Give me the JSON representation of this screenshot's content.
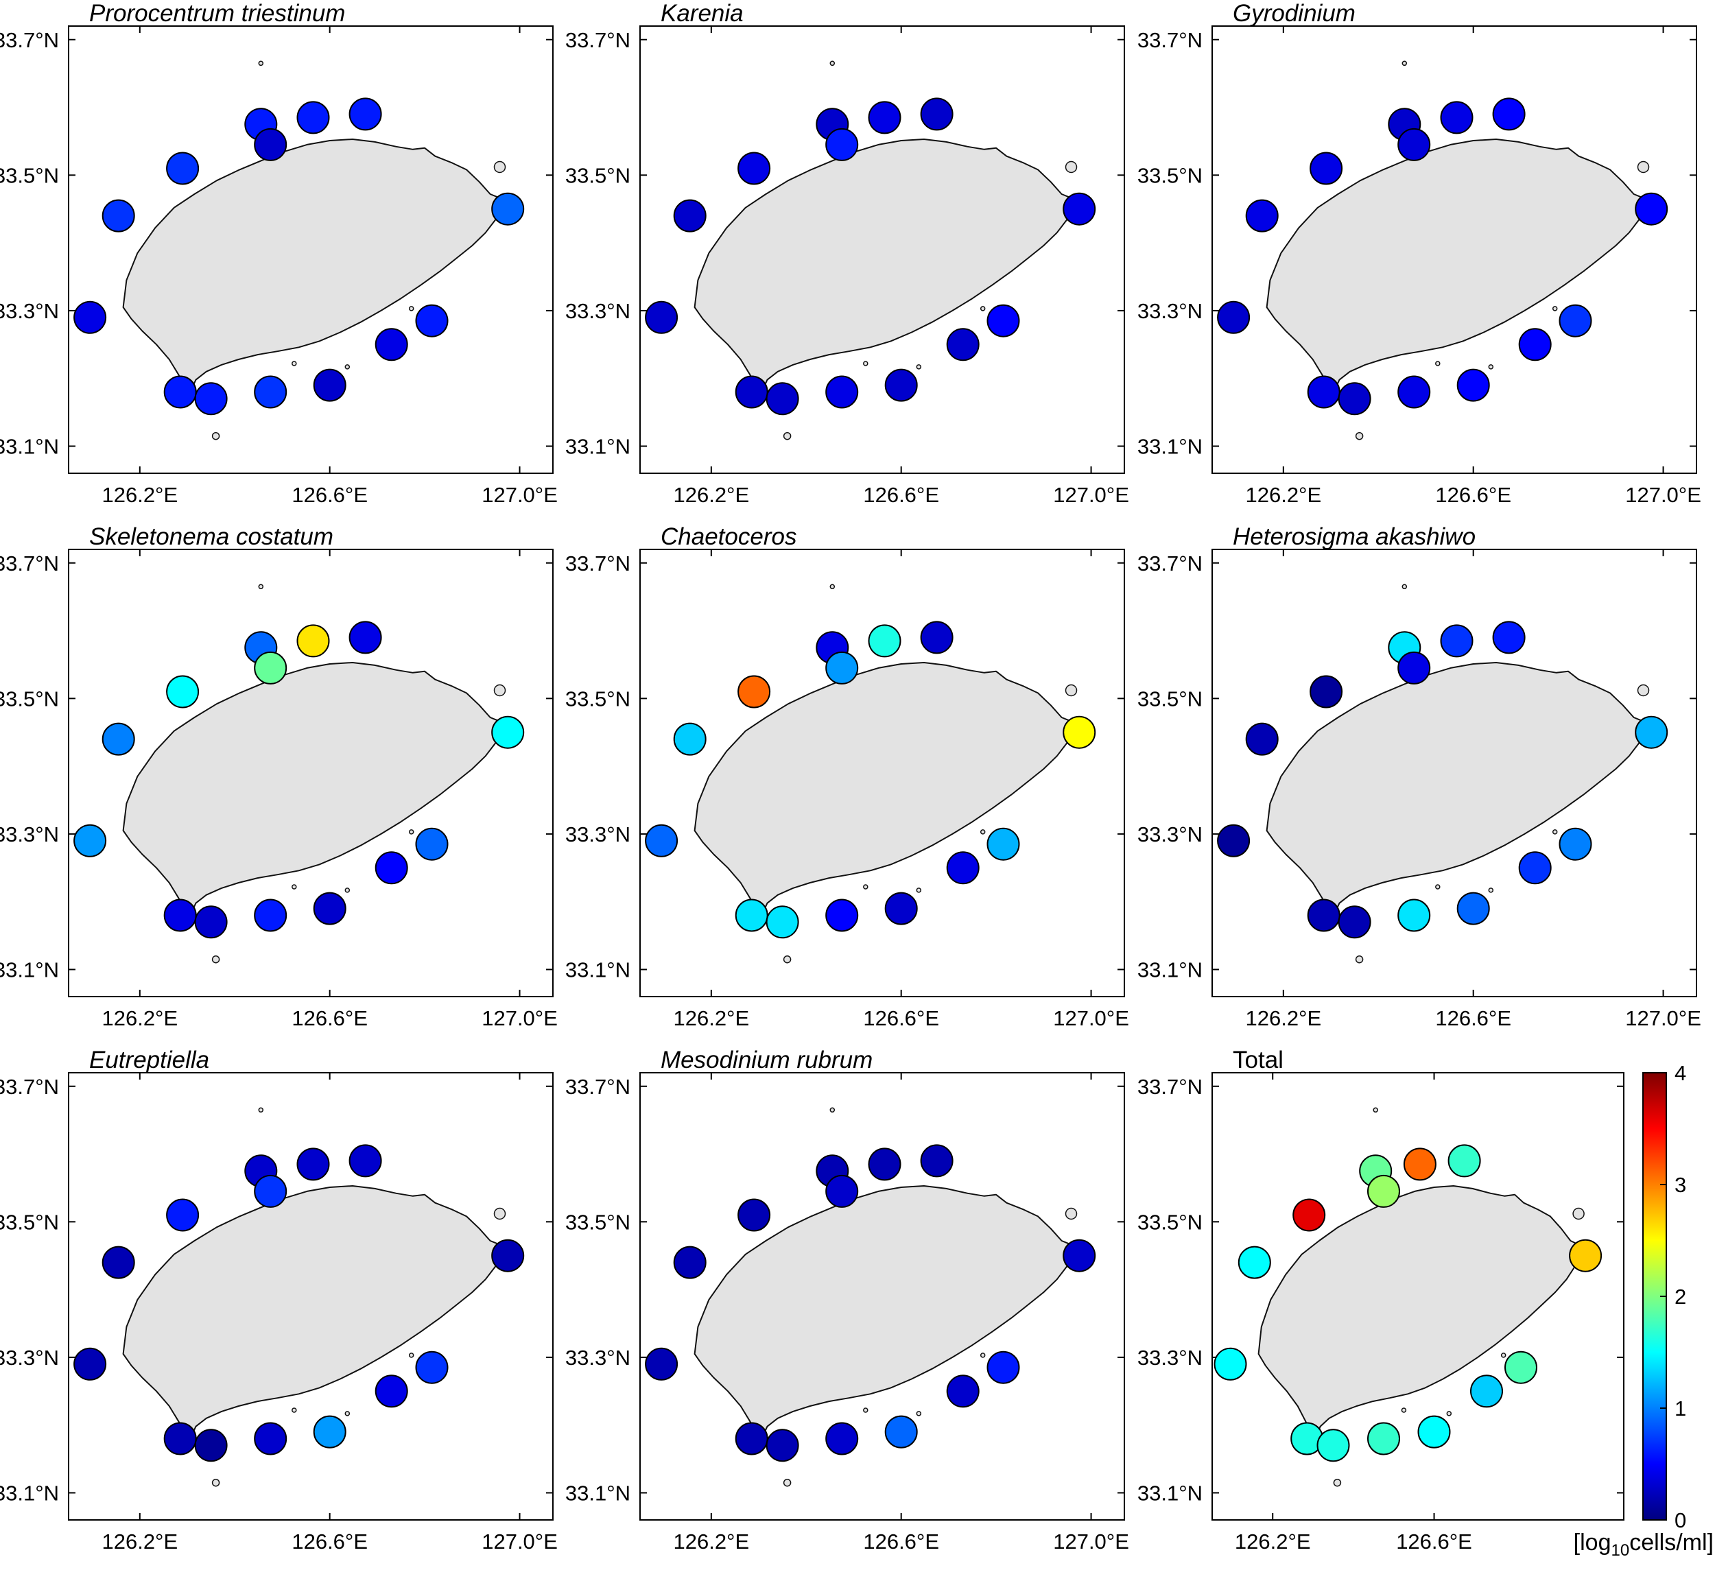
{
  "chart_data": {
    "type": "scatter",
    "subtype": "station-map-grid",
    "description": "Spatial distribution of phytoplankton abundance at coastal stations around Jeju Island",
    "colormap": "jet",
    "value_range": [
      0,
      4
    ],
    "lon_range": [
      126.05,
      127.07
    ],
    "lat_range": [
      33.06,
      33.72
    ],
    "x_ticks": [
      {
        "v": 126.2,
        "label": "126.2°E"
      },
      {
        "v": 126.6,
        "label": "126.6°E"
      },
      {
        "v": 127.0,
        "label": "127.0°E"
      }
    ],
    "y_ticks": [
      {
        "v": 33.7,
        "label": "33.7°N"
      },
      {
        "v": 33.5,
        "label": "33.5°N"
      },
      {
        "v": 33.3,
        "label": "33.3°N"
      },
      {
        "v": 33.1,
        "label": "33.1°N"
      }
    ],
    "colorbar_ticks": [
      0,
      1,
      2,
      3,
      4
    ],
    "units_label": {
      "prefix": "[log",
      "sub": "10",
      "suffix": "cells/ml]"
    },
    "stations": [
      [
        126.29,
        33.51
      ],
      [
        126.455,
        33.575
      ],
      [
        126.475,
        33.545
      ],
      [
        126.565,
        33.585
      ],
      [
        126.675,
        33.59
      ],
      [
        126.155,
        33.44
      ],
      [
        126.975,
        33.45
      ],
      [
        126.095,
        33.29
      ],
      [
        126.285,
        33.18
      ],
      [
        126.35,
        33.17
      ],
      [
        126.475,
        33.18
      ],
      [
        126.6,
        33.19
      ],
      [
        126.73,
        33.25
      ],
      [
        126.815,
        33.285
      ]
    ],
    "island_outline": [
      [
        126.165,
        33.305
      ],
      [
        126.172,
        33.345
      ],
      [
        126.195,
        33.385
      ],
      [
        126.232,
        33.422
      ],
      [
        126.272,
        33.452
      ],
      [
        126.315,
        33.472
      ],
      [
        126.362,
        33.492
      ],
      [
        126.41,
        33.508
      ],
      [
        126.458,
        33.522
      ],
      [
        126.505,
        33.535
      ],
      [
        126.552,
        33.545
      ],
      [
        126.6,
        33.551
      ],
      [
        126.648,
        33.553
      ],
      [
        126.695,
        33.549
      ],
      [
        126.74,
        33.542
      ],
      [
        126.775,
        33.538
      ],
      [
        126.8,
        33.54
      ],
      [
        126.822,
        33.528
      ],
      [
        126.858,
        33.518
      ],
      [
        126.888,
        33.508
      ],
      [
        126.915,
        33.49
      ],
      [
        126.938,
        33.472
      ],
      [
        126.952,
        33.468
      ],
      [
        126.958,
        33.455
      ],
      [
        126.95,
        33.435
      ],
      [
        126.928,
        33.415
      ],
      [
        126.9,
        33.396
      ],
      [
        126.868,
        33.378
      ],
      [
        126.832,
        33.358
      ],
      [
        126.792,
        33.338
      ],
      [
        126.75,
        33.318
      ],
      [
        126.708,
        33.3
      ],
      [
        126.665,
        33.283
      ],
      [
        126.622,
        33.268
      ],
      [
        126.578,
        33.255
      ],
      [
        126.535,
        33.246
      ],
      [
        126.49,
        33.24
      ],
      [
        126.448,
        33.235
      ],
      [
        126.408,
        33.228
      ],
      [
        126.372,
        33.22
      ],
      [
        126.34,
        33.21
      ],
      [
        126.318,
        33.198
      ],
      [
        126.308,
        33.183
      ],
      [
        126.3,
        33.172
      ],
      [
        126.293,
        33.186
      ],
      [
        126.282,
        33.205
      ],
      [
        126.262,
        33.228
      ],
      [
        126.235,
        33.25
      ],
      [
        126.205,
        33.27
      ],
      [
        126.182,
        33.288
      ]
    ],
    "islets": [
      {
        "lon": 126.455,
        "lat": 33.665,
        "r": 3
      },
      {
        "lon": 126.958,
        "lat": 33.512,
        "r": 8
      },
      {
        "lon": 126.36,
        "lat": 33.115,
        "r": 5
      },
      {
        "lon": 126.525,
        "lat": 33.222,
        "r": 3
      },
      {
        "lon": 126.637,
        "lat": 33.217,
        "r": 3
      },
      {
        "lon": 126.772,
        "lat": 33.303,
        "r": 3
      }
    ],
    "panels": [
      {
        "title": "Prorocentrum triestinum",
        "italic": true,
        "colorbar": false,
        "values": [
          0.7,
          0.6,
          0.3,
          0.6,
          0.6,
          0.7,
          0.9,
          0.4,
          0.6,
          0.6,
          0.7,
          0.3,
          0.4,
          0.6
        ]
      },
      {
        "title": "Karenia",
        "italic": true,
        "colorbar": false,
        "values": [
          0.4,
          0.3,
          0.6,
          0.4,
          0.3,
          0.3,
          0.4,
          0.3,
          0.3,
          0.3,
          0.4,
          0.3,
          0.3,
          0.5
        ]
      },
      {
        "title": "Gyrodinium",
        "italic": true,
        "colorbar": false,
        "values": [
          0.4,
          0.3,
          0.35,
          0.4,
          0.5,
          0.4,
          0.5,
          0.3,
          0.4,
          0.3,
          0.4,
          0.5,
          0.5,
          0.7
        ]
      },
      {
        "title": "Skeletonema costatum",
        "italic": true,
        "colorbar": false,
        "values": [
          1.5,
          0.9,
          1.9,
          2.6,
          0.4,
          1.0,
          1.5,
          1.1,
          0.4,
          0.3,
          0.6,
          0.3,
          0.5,
          0.9
        ]
      },
      {
        "title": "Chaetoceros",
        "italic": true,
        "colorbar": false,
        "values": [
          3.1,
          0.4,
          1.1,
          1.6,
          0.3,
          1.3,
          2.5,
          0.9,
          1.4,
          1.4,
          0.5,
          0.3,
          0.4,
          1.2
        ]
      },
      {
        "title": "Heterosigma akashiwo",
        "italic": true,
        "colorbar": false,
        "values": [
          0.1,
          1.4,
          0.4,
          0.7,
          0.6,
          0.2,
          1.2,
          0.1,
          0.2,
          0.2,
          1.4,
          0.9,
          0.7,
          1.0
        ]
      },
      {
        "title": "Eutreptiella",
        "italic": true,
        "colorbar": false,
        "values": [
          0.6,
          0.3,
          0.7,
          0.3,
          0.3,
          0.2,
          0.2,
          0.2,
          0.2,
          0.1,
          0.3,
          1.1,
          0.4,
          0.7
        ]
      },
      {
        "title": "Mesodinium rubrum",
        "italic": true,
        "colorbar": false,
        "values": [
          0.2,
          0.2,
          0.3,
          0.2,
          0.2,
          0.2,
          0.3,
          0.2,
          0.2,
          0.2,
          0.3,
          0.9,
          0.3,
          0.6
        ]
      },
      {
        "title": "Total",
        "italic": false,
        "colorbar": true,
        "values": [
          3.6,
          1.9,
          2.1,
          3.1,
          1.7,
          1.5,
          2.7,
          1.5,
          1.6,
          1.6,
          1.7,
          1.5,
          1.3,
          1.8
        ]
      }
    ]
  }
}
